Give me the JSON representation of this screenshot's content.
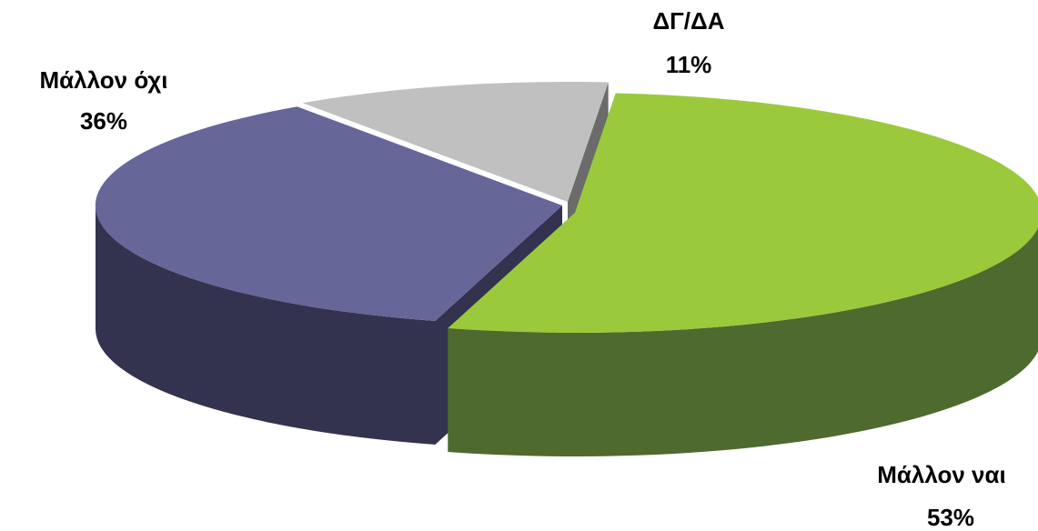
{
  "chart_data": {
    "type": "pie",
    "style": "3d-exploded",
    "title": "",
    "legend": "none",
    "slices": [
      {
        "label": "Μάλλον ναι",
        "value": 53,
        "value_label": "53%",
        "top_color": "#9aca3c",
        "side_color": "#4e6a2e"
      },
      {
        "label": "Μάλλον όχι",
        "value": 36,
        "value_label": "36%",
        "top_color": "#666699",
        "side_color": "#33334f"
      },
      {
        "label": "ΔΓ/ΔΑ",
        "value": 11,
        "value_label": "11%",
        "top_color": "#c0c0c0",
        "side_color": "#6b6b6b"
      }
    ]
  }
}
